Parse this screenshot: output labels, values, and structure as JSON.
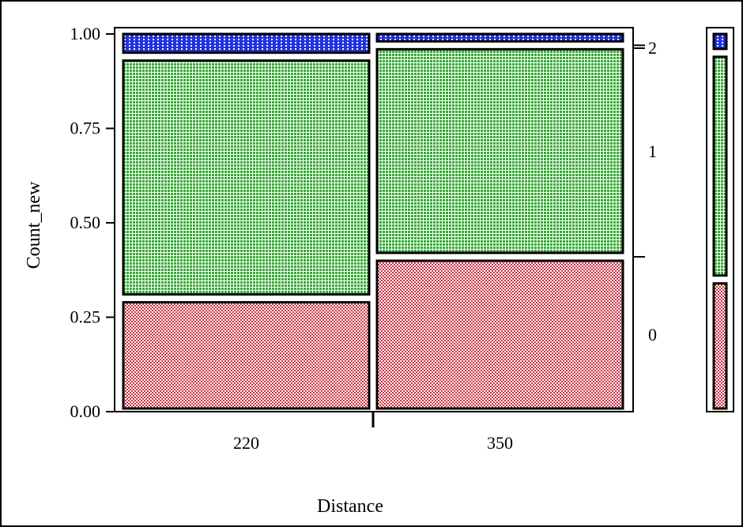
{
  "chart_data": {
    "type": "mosaic",
    "title": "",
    "xlabel": "Distance",
    "ylabel": "Count_new",
    "ylim": [
      0,
      1
    ],
    "y_ticks": [
      "0.00",
      "0.25",
      "0.50",
      "0.75",
      "1.00"
    ],
    "categories": [
      "220",
      "350"
    ],
    "column_widths": [
      0.5,
      0.5
    ],
    "levels": [
      "0",
      "1",
      "2"
    ],
    "series": [
      {
        "name": "0",
        "values": [
          0.3,
          0.41
        ]
      },
      {
        "name": "1",
        "values": [
          0.64,
          0.56
        ]
      },
      {
        "name": "2",
        "values": [
          0.06,
          0.03
        ]
      }
    ],
    "overall": [
      0.35,
      0.6,
      0.05
    ],
    "colors": {
      "0": "#cc3344",
      "1": "#33aa33",
      "2": "#2233dd",
      "frame": "#000000",
      "background": "#ffffff"
    },
    "grid": false,
    "legend": "right"
  }
}
